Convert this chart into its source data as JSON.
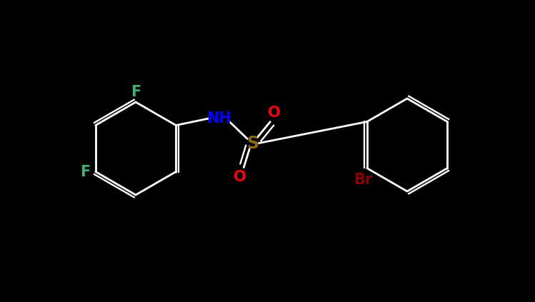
{
  "bg_color": "#000000",
  "bond_color": "#FFFFFF",
  "colors": {
    "N": "#0000FF",
    "S": "#8B6914",
    "O": "#FF0000",
    "F": "#3CB371",
    "Br": "#8B0000",
    "C": "#FFFFFF"
  },
  "figsize": [
    7.49,
    4.23
  ],
  "dpi": 100
}
